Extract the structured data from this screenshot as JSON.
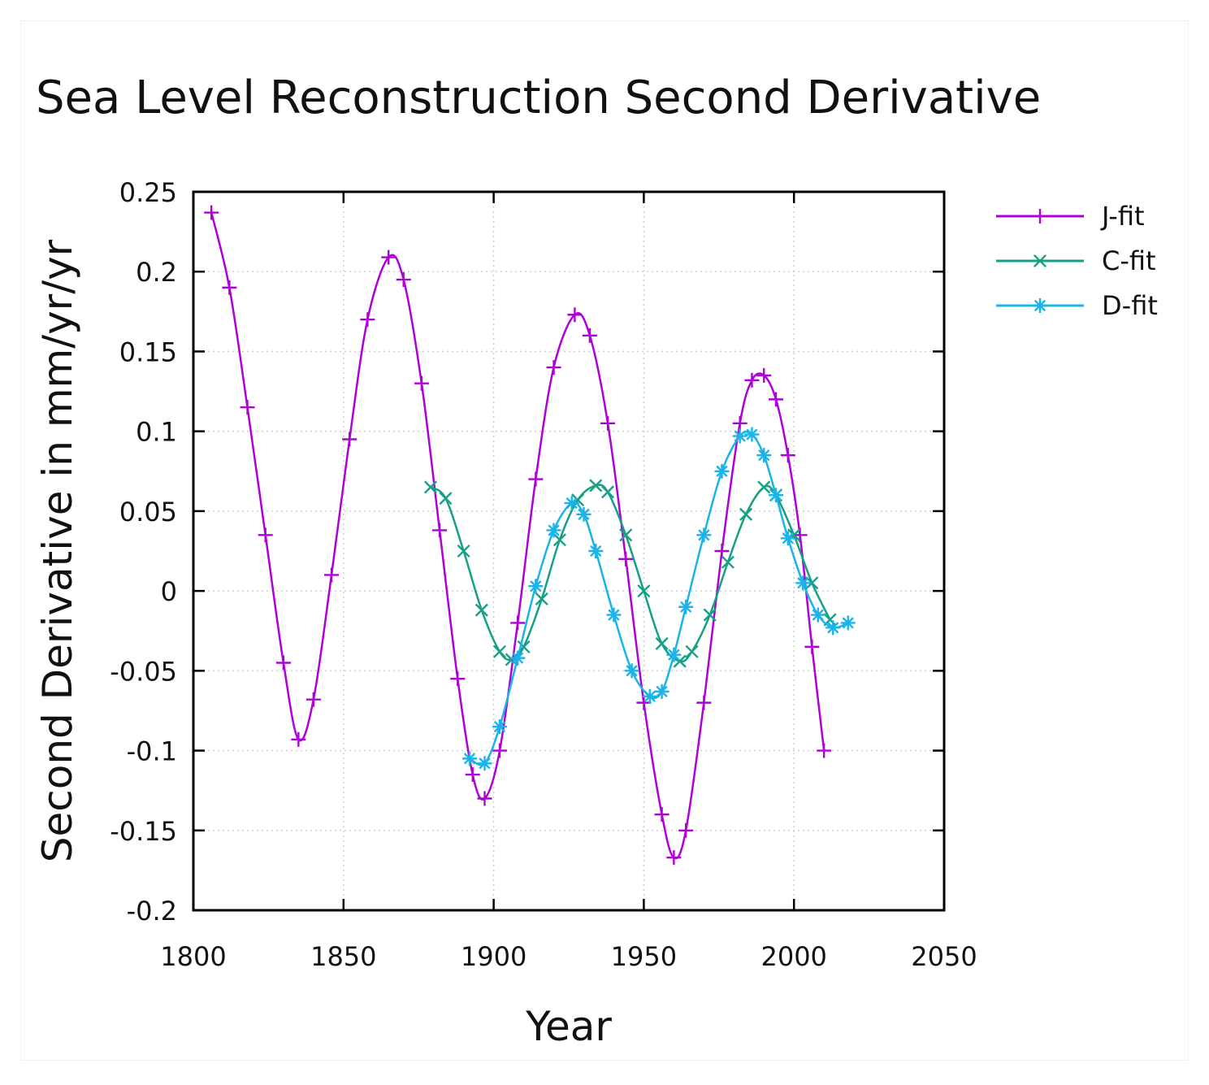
{
  "chart_data": {
    "type": "line",
    "title": "Sea Level Reconstruction Second Derivative",
    "xlabel": "Year",
    "ylabel": "Second Derivative in mm/yr/yr",
    "xlim": [
      1800,
      2050
    ],
    "ylim": [
      -0.2,
      0.25
    ],
    "xticks": [
      1800,
      1850,
      1900,
      1950,
      2000,
      2050
    ],
    "yticks": [
      -0.2,
      -0.15,
      -0.1,
      -0.05,
      0,
      0.05,
      0.1,
      0.15,
      0.2,
      0.25
    ],
    "xtick_labels": [
      "1800",
      "1850",
      "1900",
      "1950",
      "2000",
      "2050"
    ],
    "ytick_labels": [
      "-0.2",
      "-0.15",
      "-0.1",
      "-0.05",
      "0",
      "0.05",
      "0.1",
      "0.15",
      "0.2",
      "0.25"
    ],
    "grid": true,
    "legend_position": "outside-top-right",
    "series": [
      {
        "name": "J-fit",
        "color": "#b000d8",
        "marker": "plus",
        "x": [
          1806,
          1812,
          1818,
          1824,
          1830,
          1835,
          1840,
          1846,
          1852,
          1858,
          1865,
          1870,
          1876,
          1882,
          1888,
          1893,
          1897,
          1902,
          1908,
          1914,
          1920,
          1927,
          1932,
          1938,
          1944,
          1950,
          1956,
          1960,
          1964,
          1970,
          1976,
          1982,
          1986,
          1990,
          1994,
          1998,
          2002,
          2006,
          2010
        ],
        "y": [
          0.237,
          0.19,
          0.115,
          0.035,
          -0.045,
          -0.093,
          -0.068,
          0.01,
          0.095,
          0.17,
          0.209,
          0.195,
          0.13,
          0.038,
          -0.055,
          -0.115,
          -0.13,
          -0.1,
          -0.02,
          0.07,
          0.14,
          0.173,
          0.16,
          0.105,
          0.02,
          -0.07,
          -0.14,
          -0.167,
          -0.15,
          -0.07,
          0.025,
          0.105,
          0.132,
          0.135,
          0.12,
          0.085,
          0.035,
          -0.035,
          -0.1
        ]
      },
      {
        "name": "C-fit",
        "color": "#16a085",
        "marker": "x",
        "x": [
          1879,
          1884,
          1890,
          1896,
          1902,
          1906,
          1910,
          1916,
          1922,
          1928,
          1934,
          1938,
          1944,
          1950,
          1956,
          1962,
          1966,
          1972,
          1978,
          1984,
          1990,
          1994,
          2000,
          2006,
          2012
        ],
        "y": [
          0.065,
          0.058,
          0.025,
          -0.012,
          -0.038,
          -0.043,
          -0.035,
          -0.005,
          0.032,
          0.057,
          0.066,
          0.062,
          0.035,
          0.0,
          -0.033,
          -0.044,
          -0.038,
          -0.015,
          0.018,
          0.048,
          0.065,
          0.06,
          0.035,
          0.005,
          -0.018
        ]
      },
      {
        "name": "D-fit",
        "color": "#1ab4e8",
        "marker": "star",
        "x": [
          1892,
          1897,
          1902,
          1908,
          1914,
          1920,
          1926,
          1930,
          1934,
          1940,
          1946,
          1952,
          1956,
          1960,
          1964,
          1970,
          1976,
          1982,
          1986,
          1990,
          1994,
          1998,
          2003,
          2008,
          2013,
          2018
        ],
        "y": [
          -0.105,
          -0.108,
          -0.085,
          -0.042,
          0.003,
          0.038,
          0.055,
          0.048,
          0.025,
          -0.015,
          -0.05,
          -0.066,
          -0.063,
          -0.04,
          -0.01,
          0.035,
          0.075,
          0.097,
          0.098,
          0.085,
          0.06,
          0.033,
          0.005,
          -0.015,
          -0.023,
          -0.02
        ]
      }
    ]
  }
}
